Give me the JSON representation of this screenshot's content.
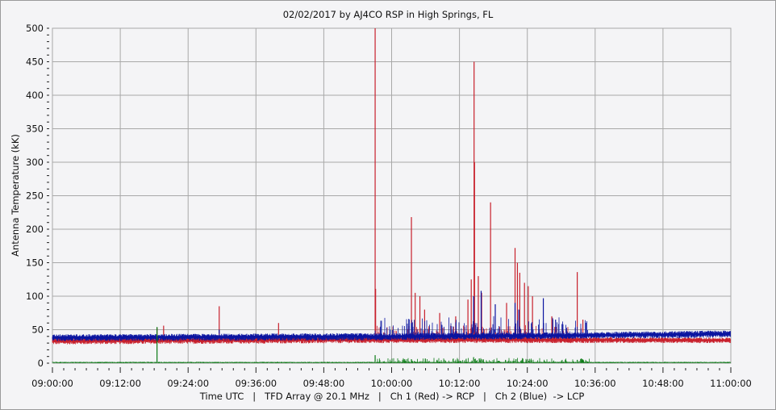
{
  "chart_data": {
    "type": "line",
    "title": "02/02/2017  by  AJ4CO RSP  in  High Springs, FL",
    "ylabel": "Antenna Temperature (kK)",
    "xlabel": "Time UTC   |   TFD Array @ 20.1 MHz   |   Ch 1 (Red) -> RCP   |   Ch 2 (Blue)  -> LCP",
    "xlim": [
      "09:00:00",
      "11:00:00"
    ],
    "ylim": [
      0,
      500
    ],
    "x_ticks": [
      "09:00:00",
      "09:12:00",
      "09:24:00",
      "09:36:00",
      "09:48:00",
      "10:00:00",
      "10:12:00",
      "10:24:00",
      "10:36:00",
      "10:48:00",
      "11:00:00"
    ],
    "y_ticks": [
      "0",
      "50",
      "100",
      "150",
      "200",
      "250",
      "300",
      "350",
      "400",
      "450",
      "500"
    ],
    "grid": true,
    "colors": {
      "ch1": "#c8202c",
      "ch2": "#0a14a0",
      "ch3": "#0a7a14",
      "grid": "#a8a8a8",
      "background": "#f4f4f6"
    },
    "series": [
      {
        "name": "Ch 1 (Red) -> RCP",
        "color": "#c8202c",
        "baseline": [
          {
            "time": "09:00:00",
            "low": 28,
            "high": 38
          },
          {
            "time": "10:00:00",
            "low": 30,
            "high": 40
          },
          {
            "time": "11:00:00",
            "low": 30,
            "high": 38
          }
        ],
        "spikes": [
          [
            "09:18:30",
            53
          ],
          [
            "09:19:40",
            56
          ],
          [
            "09:29:30",
            85
          ],
          [
            "09:40:00",
            60
          ],
          [
            "09:57:05",
            500
          ],
          [
            "09:57:10",
            111
          ],
          [
            "10:03:30",
            218
          ],
          [
            "10:04:10",
            105
          ],
          [
            "10:05:00",
            100
          ],
          [
            "10:05:50",
            80
          ],
          [
            "10:08:30",
            75
          ],
          [
            "10:11:20",
            70
          ],
          [
            "10:13:30",
            95
          ],
          [
            "10:14:05",
            125
          ],
          [
            "10:14:35",
            450
          ],
          [
            "10:14:40",
            300
          ],
          [
            "10:15:20",
            130
          ],
          [
            "10:15:55",
            105
          ],
          [
            "10:17:30",
            240
          ],
          [
            "10:20:20",
            90
          ],
          [
            "10:21:50",
            172
          ],
          [
            "10:22:15",
            150
          ],
          [
            "10:22:40",
            135
          ],
          [
            "10:23:30",
            120
          ],
          [
            "10:24:10",
            115
          ],
          [
            "10:24:55",
            100
          ],
          [
            "10:28:20",
            70
          ],
          [
            "10:32:50",
            136
          ],
          [
            "10:33:50",
            65
          ]
        ]
      },
      {
        "name": "Ch 2 (Blue)  -> LCP",
        "color": "#0a14a0",
        "baseline": [
          {
            "time": "09:00:00",
            "low": 33,
            "high": 43
          },
          {
            "time": "10:00:00",
            "low": 34,
            "high": 45
          },
          {
            "time": "10:30:00",
            "low": 36,
            "high": 46
          },
          {
            "time": "11:00:00",
            "low": 38,
            "high": 49
          }
        ],
        "spikes": [
          [
            "09:29:30",
            50
          ],
          [
            "10:03:30",
            60
          ],
          [
            "10:14:30",
            100
          ],
          [
            "10:15:50",
            108
          ],
          [
            "10:18:20",
            88
          ],
          [
            "10:21:50",
            90
          ],
          [
            "10:22:30",
            80
          ],
          [
            "10:26:50",
            97
          ],
          [
            "10:29:00",
            65
          ]
        ]
      },
      {
        "color": "#0a7a14",
        "baseline": [
          {
            "time": "09:00:00",
            "low": 0,
            "high": 2
          },
          {
            "time": "11:00:00",
            "low": 0,
            "high": 2
          }
        ],
        "spikes": [
          [
            "09:18:30",
            54
          ],
          [
            "09:57:05",
            12
          ],
          [
            "10:03:30",
            6
          ],
          [
            "10:14:30",
            9
          ],
          [
            "10:15:30",
            7
          ],
          [
            "10:22:00",
            6
          ],
          [
            "10:32:50",
            5
          ]
        ]
      }
    ]
  }
}
